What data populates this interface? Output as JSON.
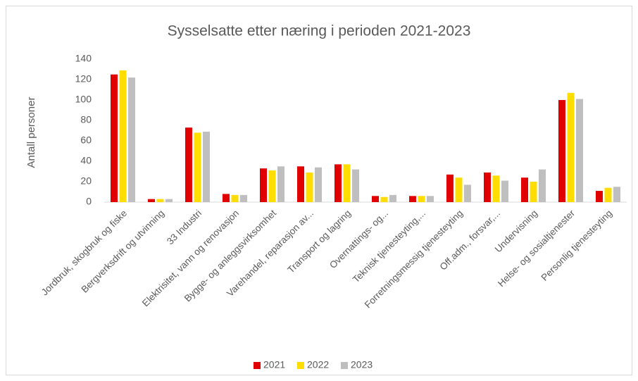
{
  "chart_data": {
    "type": "bar",
    "title": "Sysselsatte etter næring i perioden 2021-2023",
    "y_label": "Antall personer",
    "categories": [
      "Jordbruk, skogbruk og fiske",
      "Bergverksdrift og utvinning",
      "33 Industri",
      "Elektrisitet, vann og renovasjon",
      "Bygge- og anleggsvirksomhet",
      "Varehandel, reparasjon av...",
      "Transport og lagring",
      "Overnattings- og...",
      "Teknisk tjenesteyting,...",
      "Forretningsmessig tjenesteyting",
      "Off.adm., forsvar,...",
      "Undervisning",
      "Helse- og sosialtjenester",
      "Personlig tjenesteyting"
    ],
    "series": [
      {
        "name": "2021",
        "color": "#e00000",
        "values": [
          125,
          3,
          73,
          8,
          33,
          35,
          37,
          6,
          6,
          27,
          29,
          24,
          100,
          11
        ]
      },
      {
        "name": "2022",
        "color": "#ffdd00",
        "values": [
          129,
          3,
          68,
          7,
          31,
          29,
          37,
          5,
          6,
          24,
          26,
          20,
          107,
          14
        ]
      },
      {
        "name": "2023",
        "color": "#bfbfbf",
        "values": [
          122,
          3,
          69,
          7,
          35,
          34,
          32,
          7,
          6,
          17,
          21,
          32,
          101,
          15
        ]
      }
    ],
    "ylim": [
      0,
      140
    ],
    "yticks": [
      0,
      20,
      40,
      60,
      80,
      100,
      120,
      140
    ],
    "grid": false,
    "legend": "bottom"
  }
}
